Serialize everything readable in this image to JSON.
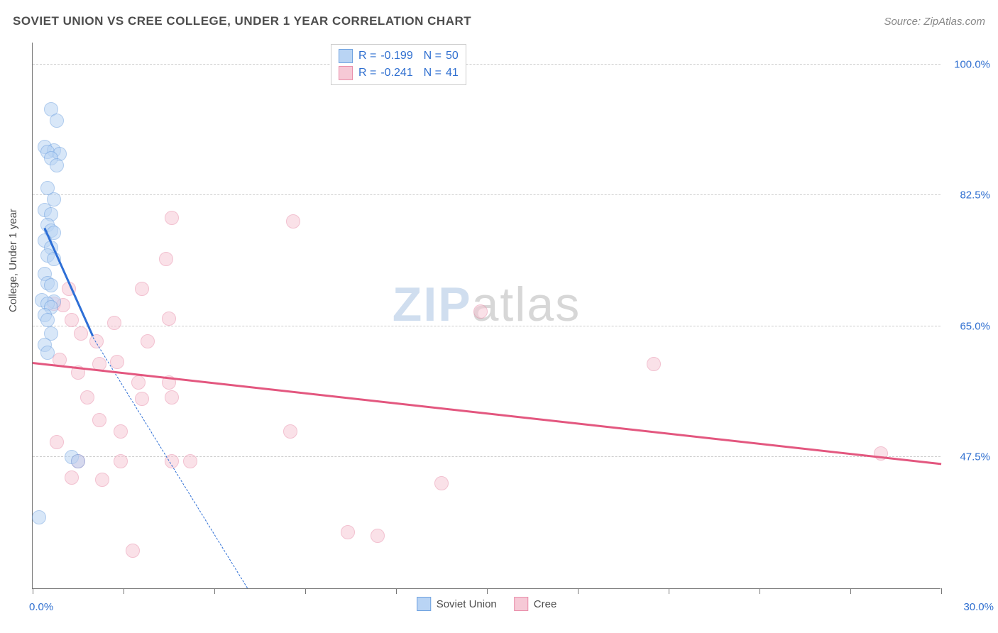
{
  "title": "SOVIET UNION VS CREE COLLEGE, UNDER 1 YEAR CORRELATION CHART",
  "source": "Source: ZipAtlas.com",
  "ylabel": "College, Under 1 year",
  "watermark": {
    "part1": "ZIP",
    "part2": "atlas"
  },
  "chart": {
    "type": "scatter",
    "xlim": [
      0,
      30
    ],
    "ylim": [
      30,
      103
    ],
    "x_ticks": [
      0,
      3,
      6,
      9,
      12,
      15,
      18,
      21,
      24,
      27,
      30
    ],
    "y_gridlines": [
      47.5,
      65.0,
      82.5,
      100.0
    ],
    "x_axis_labels": {
      "left": "0.0%",
      "right": "30.0%"
    },
    "y_tick_labels": [
      "47.5%",
      "65.0%",
      "82.5%",
      "100.0%"
    ],
    "background": "#ffffff",
    "grid_color": "#cccccc",
    "axis_color": "#777777",
    "marker_radius": 9,
    "marker_opacity": 0.55,
    "series": {
      "soviet": {
        "label": "Soviet Union",
        "R": "-0.199",
        "N": "50",
        "fill": "#b9d4f4",
        "stroke": "#6fa2e0",
        "trend_color": "#2e6fd6",
        "trend_solid": {
          "x1": 0.4,
          "y1": 78.0,
          "x2": 2.0,
          "y2": 63.5
        },
        "trend_dashed": {
          "x1": 2.0,
          "y1": 63.5,
          "x2": 7.1,
          "y2": 30.0
        },
        "points": [
          [
            0.6,
            94.0
          ],
          [
            0.8,
            92.5
          ],
          [
            0.4,
            89.0
          ],
          [
            0.7,
            88.5
          ],
          [
            0.5,
            88.3
          ],
          [
            0.9,
            88.0
          ],
          [
            0.6,
            87.5
          ],
          [
            0.8,
            86.5
          ],
          [
            0.5,
            83.5
          ],
          [
            0.7,
            82.0
          ],
          [
            0.4,
            80.5
          ],
          [
            0.6,
            80.0
          ],
          [
            0.5,
            78.5
          ],
          [
            0.6,
            77.8
          ],
          [
            0.7,
            77.5
          ],
          [
            0.4,
            76.5
          ],
          [
            0.6,
            75.5
          ],
          [
            0.5,
            74.5
          ],
          [
            0.7,
            74.0
          ],
          [
            0.4,
            72.0
          ],
          [
            0.5,
            70.8
          ],
          [
            0.6,
            70.5
          ],
          [
            0.3,
            68.5
          ],
          [
            0.7,
            68.3
          ],
          [
            0.5,
            68.0
          ],
          [
            0.6,
            67.5
          ],
          [
            0.4,
            66.5
          ],
          [
            0.5,
            65.8
          ],
          [
            0.6,
            64.0
          ],
          [
            0.4,
            62.5
          ],
          [
            0.5,
            61.5
          ],
          [
            1.3,
            47.5
          ],
          [
            1.5,
            47.0
          ],
          [
            0.2,
            39.5
          ]
        ]
      },
      "cree": {
        "label": "Cree",
        "R": "-0.241",
        "N": "41",
        "fill": "#f6c9d6",
        "stroke": "#e98fab",
        "trend_color": "#e3577f",
        "trend_solid": {
          "x1": 0.0,
          "y1": 60.0,
          "x2": 30.0,
          "y2": 46.5
        },
        "points": [
          [
            4.6,
            79.5
          ],
          [
            8.6,
            79.0
          ],
          [
            4.4,
            74.0
          ],
          [
            1.2,
            70.0
          ],
          [
            3.6,
            70.0
          ],
          [
            0.7,
            68.0
          ],
          [
            1.0,
            67.8
          ],
          [
            14.8,
            67.0
          ],
          [
            1.3,
            65.8
          ],
          [
            4.5,
            66.0
          ],
          [
            2.7,
            65.5
          ],
          [
            1.6,
            64.0
          ],
          [
            2.1,
            63.0
          ],
          [
            3.8,
            63.0
          ],
          [
            0.9,
            60.5
          ],
          [
            2.2,
            60.0
          ],
          [
            2.8,
            60.2
          ],
          [
            20.5,
            60.0
          ],
          [
            1.5,
            58.8
          ],
          [
            3.5,
            57.5
          ],
          [
            4.5,
            57.5
          ],
          [
            1.8,
            55.5
          ],
          [
            3.6,
            55.3
          ],
          [
            4.6,
            55.5
          ],
          [
            2.2,
            52.5
          ],
          [
            2.9,
            51.0
          ],
          [
            8.5,
            51.0
          ],
          [
            0.8,
            49.5
          ],
          [
            28.0,
            48.0
          ],
          [
            1.5,
            47.0
          ],
          [
            2.9,
            47.0
          ],
          [
            4.6,
            47.0
          ],
          [
            5.2,
            47.0
          ],
          [
            1.3,
            44.8
          ],
          [
            2.3,
            44.5
          ],
          [
            13.5,
            44.0
          ],
          [
            10.4,
            37.5
          ],
          [
            11.4,
            37.0
          ],
          [
            3.3,
            35.0
          ]
        ]
      }
    }
  },
  "legend_bottom": {
    "soviet": "Soviet Union",
    "cree": "Cree"
  }
}
